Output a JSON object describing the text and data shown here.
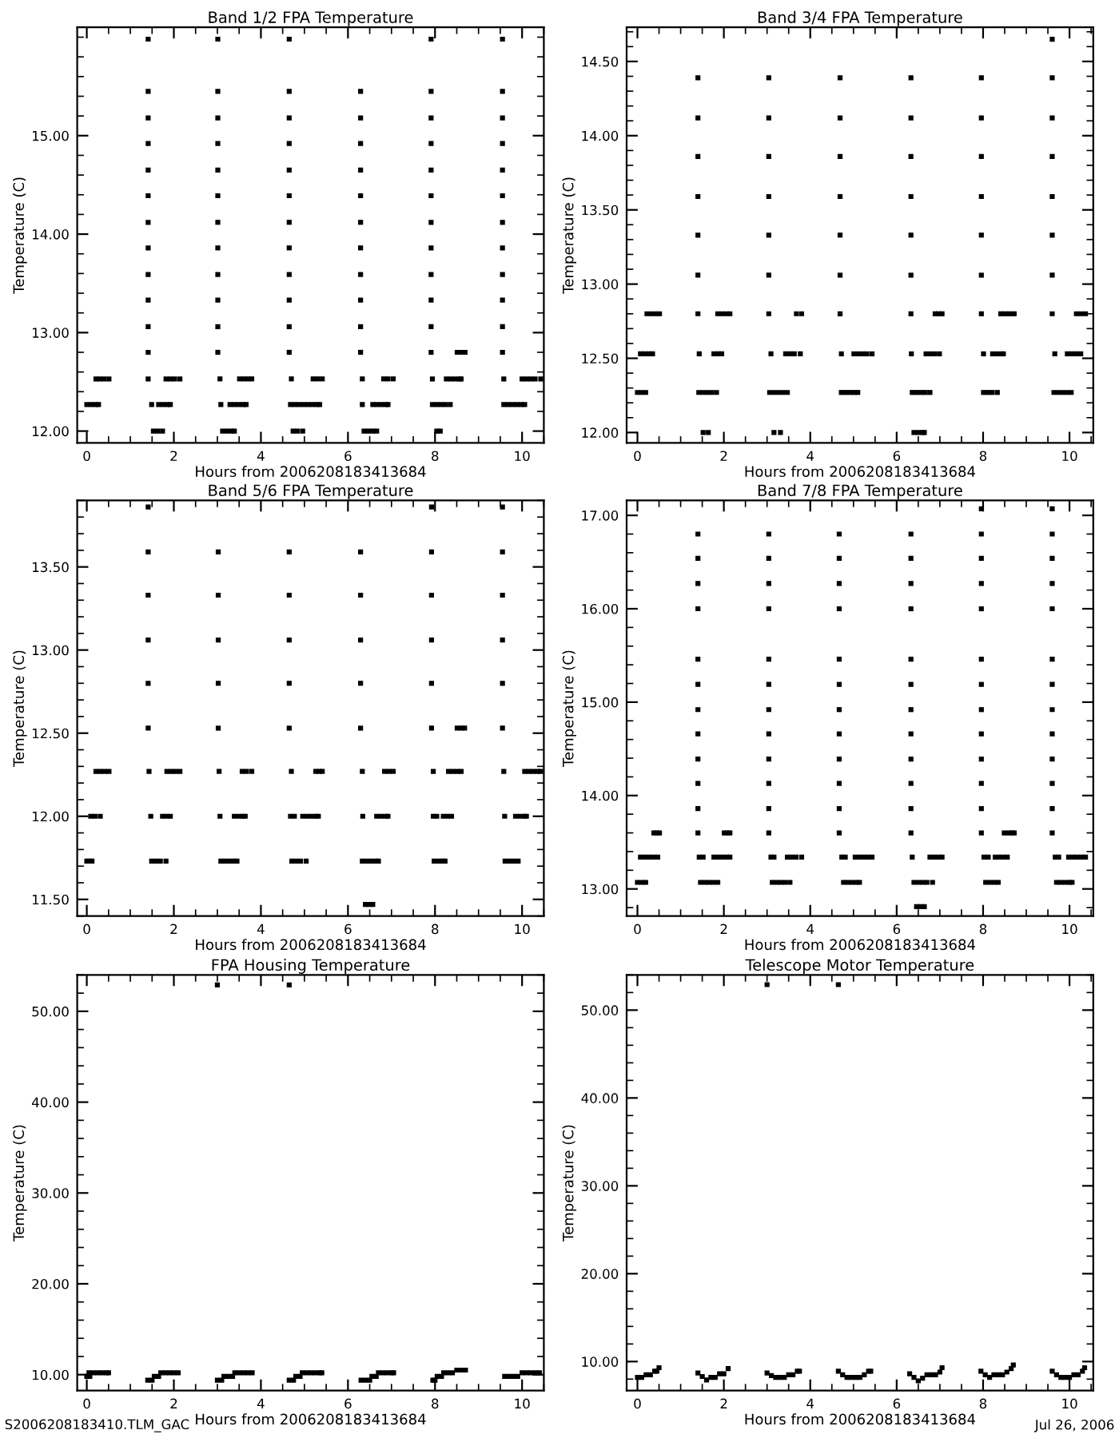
{
  "chart_data": [
    {
      "type": "scatter",
      "title": "Band 1/2 FPA Temperature",
      "xlabel": "Hours from 2006208183413684",
      "ylabel": "Temperature (C)",
      "color": "#000000",
      "marker": "square",
      "grid": false,
      "xlim": [
        -0.22,
        10.5
      ],
      "xticks": [
        0,
        2,
        4,
        6,
        8,
        10
      ],
      "ylim": [
        11.88,
        16.1
      ],
      "yticks": [
        {
          "value": 12,
          "label": "12.00"
        },
        {
          "value": 13,
          "label": "13.00"
        },
        {
          "value": 14,
          "label": "14.00"
        },
        {
          "value": 15,
          "label": "15.00"
        }
      ],
      "x": [
        0,
        0.1,
        0.2,
        0.27,
        0.21,
        0.3,
        0.4,
        0.51,
        1.41,
        1.41,
        1.41,
        1.41,
        1.41,
        1.41,
        1.41,
        1.41,
        1.41,
        1.41,
        1.41,
        1.41,
        1.41,
        1.49,
        1.53,
        1.63,
        1.74,
        1.65,
        1.75,
        1.85,
        1.92,
        1.82,
        1.92,
        2.02,
        2.14,
        3.01,
        3.01,
        3.01,
        3.01,
        3.01,
        3.01,
        3.01,
        3.01,
        3.01,
        3.01,
        3.01,
        3.01,
        3.06,
        3.08,
        3.12,
        3.22,
        3.32,
        3.39,
        3.29,
        3.39,
        3.49,
        3.59,
        3.66,
        3.51,
        3.61,
        3.71,
        3.79,
        4.65,
        4.65,
        4.65,
        4.65,
        4.65,
        4.65,
        4.65,
        4.65,
        4.65,
        4.65,
        4.65,
        4.65,
        4.7,
        4.68,
        4.78,
        4.88,
        4.98,
        5.08,
        5.18,
        5.28,
        5.35,
        4.74,
        4.84,
        4.96,
        5.2,
        5.3,
        5.41,
        6.29,
        6.29,
        6.29,
        6.29,
        6.29,
        6.29,
        6.29,
        6.29,
        6.29,
        6.29,
        6.29,
        6.33,
        6.33,
        6.37,
        6.47,
        6.57,
        6.66,
        6.57,
        6.67,
        6.77,
        6.87,
        6.92,
        6.82,
        6.92,
        7.04,
        7.91,
        7.91,
        7.91,
        7.91,
        7.91,
        7.91,
        7.91,
        7.91,
        7.91,
        7.91,
        7.91,
        7.91,
        7.94,
        7.94,
        8.04,
        8.14,
        8.24,
        8.35,
        8.04,
        8.12,
        8.26,
        8.36,
        8.46,
        8.56,
        8.6,
        8.51,
        8.6,
        8.69,
        9.55,
        9.55,
        9.55,
        9.55,
        9.55,
        9.55,
        9.55,
        9.55,
        9.55,
        9.55,
        9.55,
        9.55,
        9.58,
        9.58,
        9.68,
        9.78,
        9.88,
        9.98,
        10.06,
        10.0,
        10.1,
        10.2,
        10.3,
        10.43
      ],
      "values": [
        12.27,
        12.27,
        12.27,
        12.27,
        12.53,
        12.53,
        12.53,
        12.53,
        12.53,
        12.8,
        13.06,
        13.33,
        13.59,
        13.86,
        14.12,
        14.39,
        14.65,
        14.92,
        15.18,
        15.45,
        15.98,
        12.27,
        12.0,
        12.0,
        12.0,
        12.27,
        12.27,
        12.27,
        12.27,
        12.53,
        12.53,
        12.53,
        12.53,
        12.8,
        13.06,
        13.33,
        13.59,
        13.86,
        14.12,
        14.39,
        14.65,
        14.92,
        15.18,
        15.45,
        15.98,
        12.53,
        12.27,
        12.0,
        12.0,
        12.0,
        12.0,
        12.27,
        12.27,
        12.27,
        12.27,
        12.27,
        12.53,
        12.53,
        12.53,
        12.53,
        12.8,
        13.06,
        13.33,
        13.59,
        13.86,
        14.12,
        14.39,
        14.65,
        14.92,
        15.18,
        15.45,
        15.98,
        12.53,
        12.27,
        12.27,
        12.27,
        12.27,
        12.27,
        12.27,
        12.27,
        12.27,
        12.0,
        12.0,
        12.0,
        12.53,
        12.53,
        12.53,
        12.8,
        13.06,
        13.33,
        13.59,
        13.86,
        14.12,
        14.39,
        14.65,
        14.92,
        15.18,
        15.45,
        12.53,
        12.27,
        12.0,
        12.0,
        12.0,
        12.0,
        12.27,
        12.27,
        12.27,
        12.27,
        12.27,
        12.53,
        12.53,
        12.53,
        12.8,
        13.06,
        13.33,
        13.59,
        13.86,
        14.12,
        14.39,
        14.65,
        14.92,
        15.18,
        15.45,
        15.98,
        12.53,
        12.27,
        12.27,
        12.27,
        12.27,
        12.27,
        12.0,
        12.0,
        12.53,
        12.53,
        12.53,
        12.53,
        12.53,
        12.8,
        12.8,
        12.8,
        12.8,
        13.06,
        13.33,
        13.59,
        13.86,
        14.12,
        14.39,
        14.65,
        14.92,
        15.18,
        15.45,
        15.98,
        12.53,
        12.27,
        12.27,
        12.27,
        12.27,
        12.27,
        12.27,
        12.53,
        12.53,
        12.53,
        12.53,
        12.53
      ]
    },
    {
      "type": "scatter",
      "title": "Band 3/4 FPA Temperature",
      "xlabel": "Hours from 2006208183413684",
      "ylabel": "Temperature (C)",
      "color": "#000000",
      "marker": "square",
      "grid": false,
      "xlim": [
        -0.25,
        10.55
      ],
      "xticks": [
        0,
        2,
        4,
        6,
        8,
        10
      ],
      "ylim": [
        11.93,
        14.73
      ],
      "yticks": [
        {
          "value": 12,
          "label": "12.00"
        },
        {
          "value": 12.5,
          "label": "12.50"
        },
        {
          "value": 13,
          "label": "13.00"
        },
        {
          "value": 13.5,
          "label": "13.50"
        },
        {
          "value": 14,
          "label": "14.00"
        },
        {
          "value": 14.5,
          "label": "14.50"
        }
      ],
      "x": [
        0,
        0.1,
        0.19,
        0.07,
        0.17,
        0.27,
        0.35,
        0.22,
        0.32,
        0.42,
        0.51,
        1.4,
        1.4,
        1.4,
        1.4,
        1.4,
        1.4,
        1.4,
        1.43,
        1.42,
        1.52,
        1.62,
        1.72,
        1.83,
        1.52,
        1.64,
        1.77,
        1.87,
        1.95,
        1.86,
        1.96,
        2.06,
        2.14,
        3.04,
        3.04,
        3.04,
        3.04,
        3.04,
        3.04,
        3.04,
        3.09,
        3.06,
        3.16,
        3.26,
        3.36,
        3.47,
        3.16,
        3.31,
        3.43,
        3.53,
        3.63,
        3.77,
        3.68,
        3.8,
        4.69,
        4.69,
        4.69,
        4.69,
        4.69,
        4.69,
        4.69,
        4.72,
        4.72,
        4.82,
        4.92,
        5.02,
        5.1,
        5.01,
        5.11,
        5.21,
        5.31,
        5.43,
        6.33,
        6.33,
        6.33,
        6.33,
        6.33,
        6.33,
        6.33,
        6.34,
        6.36,
        6.46,
        6.4,
        6.5,
        6.6,
        6.64,
        6.56,
        6.66,
        6.77,
        6.68,
        6.78,
        6.88,
        6.99,
        6.89,
        6.97,
        7.05,
        7.96,
        7.96,
        7.96,
        7.96,
        7.96,
        7.96,
        7.96,
        8.01,
        8.01,
        8.11,
        8.21,
        8.33,
        8.22,
        8.32,
        8.42,
        8.47,
        8.41,
        8.51,
        8.61,
        8.72,
        9.6,
        9.6,
        9.6,
        9.6,
        9.6,
        9.6,
        9.6,
        9.6,
        9.66,
        9.64,
        9.74,
        9.84,
        9.94,
        10.04,
        9.95,
        10.05,
        10.15,
        10.26,
        10.16,
        10.26,
        10.37
      ],
      "values": [
        12.27,
        12.27,
        12.27,
        12.53,
        12.53,
        12.53,
        12.53,
        12.8,
        12.8,
        12.8,
        12.8,
        12.8,
        13.06,
        13.33,
        13.59,
        13.86,
        14.12,
        14.39,
        12.53,
        12.27,
        12.27,
        12.27,
        12.27,
        12.27,
        12.0,
        12.0,
        12.53,
        12.53,
        12.53,
        12.8,
        12.8,
        12.8,
        12.8,
        12.8,
        13.06,
        13.33,
        13.59,
        13.86,
        14.12,
        14.39,
        12.53,
        12.27,
        12.27,
        12.27,
        12.27,
        12.27,
        12.0,
        12.0,
        12.53,
        12.53,
        12.53,
        12.53,
        12.8,
        12.8,
        12.8,
        13.06,
        13.33,
        13.59,
        13.86,
        14.12,
        14.39,
        12.53,
        12.27,
        12.27,
        12.27,
        12.27,
        12.27,
        12.53,
        12.53,
        12.53,
        12.53,
        12.53,
        12.8,
        13.06,
        13.33,
        13.59,
        13.86,
        14.12,
        14.39,
        12.53,
        12.27,
        12.27,
        12.0,
        12.0,
        12.0,
        12.0,
        12.27,
        12.27,
        12.27,
        12.53,
        12.53,
        12.53,
        12.53,
        12.8,
        12.8,
        12.8,
        12.8,
        13.06,
        13.33,
        13.59,
        13.86,
        14.12,
        14.39,
        12.53,
        12.27,
        12.27,
        12.27,
        12.27,
        12.53,
        12.53,
        12.53,
        12.53,
        12.8,
        12.8,
        12.8,
        12.8,
        12.8,
        13.06,
        13.33,
        13.59,
        13.86,
        14.12,
        14.39,
        14.65,
        12.53,
        12.27,
        12.27,
        12.27,
        12.27,
        12.27,
        12.53,
        12.53,
        12.53,
        12.53,
        12.8,
        12.8,
        12.8
      ]
    },
    {
      "type": "scatter",
      "title": "Band 5/6 FPA Temperature",
      "xlabel": "Hours from 2006208183413684",
      "ylabel": "Temperature (C)",
      "color": "#000000",
      "marker": "square",
      "grid": false,
      "xlim": [
        -0.22,
        10.5
      ],
      "xticks": [
        0,
        2,
        4,
        6,
        8,
        10
      ],
      "ylim": [
        11.4,
        13.9
      ],
      "yticks": [
        {
          "value": 11.5,
          "label": "11.50"
        },
        {
          "value": 12,
          "label": "12.00"
        },
        {
          "value": 12.5,
          "label": "12.50"
        },
        {
          "value": 13,
          "label": "13.00"
        },
        {
          "value": 13.5,
          "label": "13.50"
        }
      ],
      "x": [
        0,
        0.06,
        0.12,
        0.09,
        0.19,
        0.31,
        0.21,
        0.31,
        0.41,
        0.51,
        1.41,
        1.41,
        1.41,
        1.41,
        1.41,
        1.41,
        1.43,
        1.47,
        1.49,
        1.59,
        1.69,
        1.82,
        1.74,
        1.83,
        1.92,
        1.84,
        1.94,
        2.04,
        2.14,
        3.02,
        3.02,
        3.02,
        3.02,
        3.02,
        3.04,
        3.06,
        3.08,
        3.18,
        3.28,
        3.38,
        3.45,
        3.39,
        3.49,
        3.58,
        3.64,
        3.57,
        3.67,
        3.79,
        4.65,
        4.65,
        4.65,
        4.65,
        4.65,
        4.7,
        4.68,
        4.77,
        4.71,
        4.81,
        4.91,
        5.04,
        4.96,
        5.06,
        5.16,
        5.26,
        5.32,
        5.26,
        5.34,
        5.41,
        6.29,
        6.29,
        6.29,
        6.29,
        6.29,
        6.33,
        6.34,
        6.33,
        6.43,
        6.53,
        6.63,
        6.7,
        6.4,
        6.48,
        6.57,
        6.66,
        6.76,
        6.86,
        6.92,
        6.84,
        6.94,
        7.04,
        7.92,
        7.92,
        7.92,
        7.92,
        7.92,
        7.92,
        7.96,
        7.96,
        8.04,
        7.98,
        8.08,
        8.18,
        8.23,
        8.19,
        8.29,
        8.38,
        8.31,
        8.41,
        8.51,
        8.6,
        8.51,
        8.6,
        8.68,
        9.55,
        9.55,
        9.55,
        9.55,
        9.55,
        9.55,
        9.58,
        9.6,
        9.61,
        9.71,
        9.81,
        9.91,
        9.85,
        9.95,
        10.05,
        10.1,
        10.06,
        10.16,
        10.26,
        10.36,
        10.43
      ],
      "values": [
        11.73,
        11.73,
        11.73,
        12.0,
        12.0,
        12.0,
        12.27,
        12.27,
        12.27,
        12.27,
        12.53,
        12.8,
        13.06,
        13.33,
        13.59,
        13.86,
        12.27,
        12.0,
        11.73,
        11.73,
        11.73,
        11.73,
        12.0,
        12.0,
        12.0,
        12.27,
        12.27,
        12.27,
        12.27,
        12.53,
        12.8,
        13.06,
        13.33,
        13.59,
        12.27,
        12.0,
        11.73,
        11.73,
        11.73,
        11.73,
        11.73,
        12.0,
        12.0,
        12.0,
        12.0,
        12.27,
        12.27,
        12.27,
        12.53,
        12.8,
        13.06,
        13.33,
        13.59,
        12.27,
        12.0,
        12.0,
        11.73,
        11.73,
        11.73,
        11.73,
        12.0,
        12.0,
        12.0,
        12.0,
        12.0,
        12.27,
        12.27,
        12.27,
        12.53,
        12.8,
        13.06,
        13.33,
        13.59,
        12.27,
        12.0,
        11.73,
        11.73,
        11.73,
        11.73,
        11.73,
        11.47,
        11.47,
        11.47,
        12.0,
        12.0,
        12.0,
        12.0,
        12.27,
        12.27,
        12.27,
        12.53,
        12.8,
        13.06,
        13.33,
        13.59,
        13.86,
        12.27,
        12.0,
        12.0,
        11.73,
        11.73,
        11.73,
        11.73,
        12.0,
        12.0,
        12.0,
        12.27,
        12.27,
        12.27,
        12.27,
        12.53,
        12.53,
        12.53,
        12.53,
        12.8,
        13.06,
        13.33,
        13.59,
        13.86,
        12.27,
        12.0,
        11.73,
        11.73,
        11.73,
        11.73,
        12.0,
        12.0,
        12.0,
        12.0,
        12.27,
        12.27,
        12.27,
        12.27,
        12.27
      ]
    },
    {
      "type": "scatter",
      "title": "Band 7/8 FPA Temperature",
      "xlabel": "Hours from 2006208183413684",
      "ylabel": "Temperature (C)",
      "color": "#000000",
      "marker": "square",
      "grid": false,
      "xlim": [
        -0.25,
        10.55
      ],
      "xticks": [
        0,
        2,
        4,
        6,
        8,
        10
      ],
      "ylim": [
        12.71,
        17.16
      ],
      "yticks": [
        {
          "value": 13,
          "label": "13.00"
        },
        {
          "value": 14,
          "label": "14.00"
        },
        {
          "value": 15,
          "label": "15.00"
        },
        {
          "value": 16,
          "label": "16.00"
        },
        {
          "value": 17,
          "label": "17.00"
        }
      ],
      "x": [
        0,
        0.1,
        0.19,
        0.07,
        0.17,
        0.27,
        0.37,
        0.47,
        0.38,
        0.45,
        0.51,
        1.4,
        1.4,
        1.4,
        1.4,
        1.4,
        1.4,
        1.4,
        1.4,
        1.4,
        1.4,
        1.4,
        1.4,
        1.43,
        1.52,
        1.46,
        1.56,
        1.66,
        1.76,
        1.86,
        1.77,
        1.87,
        1.97,
        2.07,
        2.14,
        2.01,
        2.08,
        2.14,
        3.04,
        3.04,
        3.04,
        3.04,
        3.04,
        3.04,
        3.04,
        3.04,
        3.04,
        3.04,
        3.04,
        3.04,
        3.09,
        3.16,
        3.12,
        3.22,
        3.32,
        3.42,
        3.53,
        3.47,
        3.57,
        3.67,
        3.8,
        4.67,
        4.67,
        4.67,
        4.67,
        4.67,
        4.67,
        4.67,
        4.67,
        4.67,
        4.67,
        4.67,
        4.67,
        4.73,
        4.81,
        4.77,
        4.87,
        4.97,
        5.07,
        5.14,
        5.04,
        5.14,
        5.24,
        5.34,
        5.43,
        6.33,
        6.33,
        6.33,
        6.33,
        6.33,
        6.33,
        6.33,
        6.33,
        6.33,
        6.33,
        6.33,
        6.33,
        6.36,
        6.4,
        6.5,
        6.6,
        6.7,
        6.83,
        6.46,
        6.55,
        6.64,
        6.77,
        6.87,
        6.97,
        7.05,
        7.96,
        7.96,
        7.96,
        7.96,
        7.96,
        7.96,
        7.96,
        7.96,
        7.96,
        7.96,
        7.96,
        7.96,
        7.96,
        8.02,
        8.12,
        8.06,
        8.16,
        8.26,
        8.35,
        8.28,
        8.38,
        8.48,
        8.56,
        8.49,
        8.59,
        8.67,
        8.72,
        9.6,
        9.6,
        9.6,
        9.6,
        9.6,
        9.6,
        9.6,
        9.6,
        9.6,
        9.6,
        9.6,
        9.6,
        9.6,
        9.67,
        9.75,
        9.7,
        9.8,
        9.9,
        10.0,
        10.06,
        9.98,
        10.08,
        10.18,
        10.28,
        10.37
      ],
      "values": [
        13.07,
        13.07,
        13.07,
        13.34,
        13.34,
        13.34,
        13.34,
        13.34,
        13.6,
        13.6,
        13.6,
        13.6,
        13.86,
        14.13,
        14.39,
        14.66,
        14.92,
        15.19,
        15.46,
        16.0,
        16.27,
        16.54,
        16.8,
        13.34,
        13.34,
        13.07,
        13.07,
        13.07,
        13.07,
        13.07,
        13.34,
        13.34,
        13.34,
        13.34,
        13.34,
        13.6,
        13.6,
        13.6,
        13.6,
        13.86,
        14.13,
        14.39,
        14.66,
        14.92,
        15.19,
        15.46,
        16.0,
        16.27,
        16.54,
        16.8,
        13.34,
        13.34,
        13.07,
        13.07,
        13.07,
        13.07,
        13.07,
        13.34,
        13.34,
        13.34,
        13.34,
        13.6,
        13.86,
        14.13,
        14.39,
        14.66,
        14.92,
        15.19,
        15.46,
        16.0,
        16.27,
        16.54,
        16.8,
        13.34,
        13.34,
        13.07,
        13.07,
        13.07,
        13.07,
        13.07,
        13.34,
        13.34,
        13.34,
        13.34,
        13.34,
        13.6,
        13.86,
        14.13,
        14.39,
        14.66,
        14.92,
        15.19,
        15.46,
        16.0,
        16.27,
        16.54,
        16.8,
        13.34,
        13.07,
        13.07,
        13.07,
        13.07,
        13.07,
        12.81,
        12.81,
        12.81,
        13.34,
        13.34,
        13.34,
        13.34,
        13.6,
        13.86,
        14.13,
        14.39,
        14.66,
        14.92,
        15.19,
        15.46,
        16.0,
        16.27,
        16.54,
        16.8,
        17.07,
        13.34,
        13.34,
        13.07,
        13.07,
        13.07,
        13.07,
        13.34,
        13.34,
        13.34,
        13.34,
        13.6,
        13.6,
        13.6,
        13.6,
        13.6,
        13.86,
        14.13,
        14.39,
        14.66,
        14.92,
        15.19,
        15.46,
        16.0,
        16.27,
        16.54,
        16.8,
        17.07,
        13.34,
        13.34,
        13.07,
        13.07,
        13.07,
        13.07,
        13.07,
        13.34,
        13.34,
        13.34,
        13.34,
        13.34
      ]
    },
    {
      "type": "scatter",
      "title": "FPA Housing Temperature",
      "xlabel": "Hours from 2006208183413684",
      "ylabel": "Temperature (C)",
      "color": "#000000",
      "marker": "square",
      "grid": false,
      "xlim": [
        -0.22,
        10.5
      ],
      "xticks": [
        0,
        2,
        4,
        6,
        8,
        10
      ],
      "ylim": [
        8.25,
        54.0
      ],
      "yticks": [
        {
          "value": 10,
          "label": "10.00"
        },
        {
          "value": 20,
          "label": "20.00"
        },
        {
          "value": 30,
          "label": "30.00"
        },
        {
          "value": 40,
          "label": "40.00"
        },
        {
          "value": 50,
          "label": "50.00"
        }
      ],
      "annotations": [
        "S2006208183410.TLM_GAC"
      ],
      "x": [
        0,
        0.07,
        0.05,
        0.15,
        0.25,
        0.35,
        0.45,
        0.5,
        1.4,
        1.5,
        1.55,
        1.65,
        1.7,
        1.8,
        1.9,
        2.0,
        2.1,
        3.0,
        3.0,
        3.1,
        3.15,
        3.25,
        3.35,
        3.4,
        3.5,
        3.6,
        3.7,
        3.8,
        4.65,
        4.65,
        4.75,
        4.8,
        4.9,
        4.95,
        5.05,
        5.15,
        5.25,
        5.35,
        5.4,
        6.3,
        6.4,
        6.5,
        6.55,
        6.65,
        6.7,
        6.8,
        6.9,
        7.0,
        7.05,
        7.95,
        8.0,
        8.05,
        8.15,
        8.2,
        8.3,
        8.4,
        8.5,
        8.6,
        8.7,
        9.6,
        9.7,
        9.8,
        9.9,
        10.0,
        10.1,
        10.2,
        10.3,
        10.4
      ],
      "values": [
        9.8,
        9.8,
        10.2,
        10.2,
        10.2,
        10.2,
        10.2,
        10.2,
        9.4,
        9.4,
        9.8,
        9.8,
        10.2,
        10.2,
        10.2,
        10.2,
        10.2,
        52.9,
        9.4,
        9.4,
        9.8,
        9.8,
        9.8,
        10.2,
        10.2,
        10.2,
        10.2,
        10.2,
        52.9,
        9.4,
        9.4,
        9.8,
        9.8,
        10.2,
        10.2,
        10.2,
        10.2,
        10.2,
        10.2,
        9.4,
        9.4,
        9.4,
        9.8,
        9.8,
        10.2,
        10.2,
        10.2,
        10.2,
        10.2,
        9.4,
        9.4,
        9.8,
        9.8,
        10.2,
        10.2,
        10.2,
        10.5,
        10.5,
        10.5,
        9.8,
        9.8,
        9.8,
        9.8,
        10.2,
        10.2,
        10.2,
        10.2,
        10.2
      ]
    },
    {
      "type": "scatter",
      "title": "Telescope Motor Temperature",
      "xlabel": "Hours from 2006208183413684",
      "ylabel": "Temperature (C)",
      "color": "#000000",
      "marker": "square",
      "grid": false,
      "xlim": [
        -0.25,
        10.55
      ],
      "xticks": [
        0,
        2,
        4,
        6,
        8,
        10
      ],
      "ylim": [
        6.7,
        54.0
      ],
      "yticks": [
        {
          "value": 10,
          "label": "10.00"
        },
        {
          "value": 20,
          "label": "20.00"
        },
        {
          "value": 30,
          "label": "30.00"
        },
        {
          "value": 40,
          "label": "40.00"
        },
        {
          "value": 50,
          "label": "50.00"
        }
      ],
      "annotations": [
        "Jul 26, 2006"
      ],
      "x": [
        0,
        0.1,
        0.2,
        0.3,
        0.4,
        0.45,
        0.5,
        1.4,
        1.5,
        1.6,
        1.7,
        1.8,
        1.9,
        2.0,
        2.1,
        3.0,
        3.0,
        3.1,
        3.2,
        3.3,
        3.4,
        3.5,
        3.6,
        3.7,
        3.75,
        4.65,
        4.65,
        4.75,
        4.85,
        4.95,
        5.05,
        5.15,
        5.25,
        5.35,
        5.4,
        6.3,
        6.4,
        6.5,
        6.6,
        6.7,
        6.8,
        6.9,
        7.0,
        7.05,
        7.95,
        8.05,
        8.15,
        8.25,
        8.35,
        8.45,
        8.55,
        8.65,
        8.7,
        9.6,
        9.7,
        9.8,
        9.9,
        10.0,
        10.1,
        10.2,
        10.3,
        10.35
      ],
      "values": [
        8.2,
        8.2,
        8.5,
        8.5,
        8.9,
        8.9,
        9.3,
        8.7,
        8.3,
        7.9,
        8.2,
        8.2,
        8.6,
        8.6,
        9.2,
        52.9,
        8.7,
        8.4,
        8.2,
        8.2,
        8.2,
        8.5,
        8.5,
        8.9,
        8.9,
        52.9,
        8.9,
        8.5,
        8.2,
        8.2,
        8.2,
        8.2,
        8.5,
        8.9,
        8.9,
        8.6,
        8.2,
        7.8,
        8.1,
        8.5,
        8.5,
        8.5,
        8.8,
        9.3,
        8.9,
        8.5,
        8.2,
        8.5,
        8.5,
        8.5,
        8.8,
        9.2,
        9.6,
        8.9,
        8.5,
        8.2,
        8.2,
        8.2,
        8.5,
        8.5,
        8.9,
        9.3
      ]
    }
  ]
}
